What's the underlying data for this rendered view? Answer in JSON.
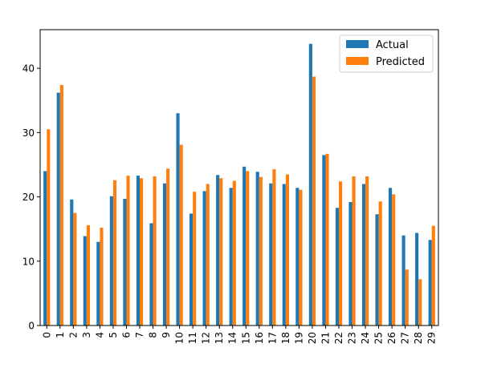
{
  "chart_data": {
    "type": "bar",
    "title": "",
    "xlabel": "",
    "ylabel": "",
    "categories": [
      "0",
      "1",
      "2",
      "3",
      "4",
      "5",
      "6",
      "7",
      "8",
      "9",
      "10",
      "11",
      "12",
      "13",
      "14",
      "15",
      "16",
      "17",
      "18",
      "19",
      "20",
      "21",
      "22",
      "23",
      "24",
      "25",
      "26",
      "27",
      "28",
      "29"
    ],
    "series": [
      {
        "name": "Actual",
        "color": "#1f77b4",
        "values": [
          24.0,
          36.2,
          19.6,
          13.9,
          13.0,
          20.1,
          19.7,
          23.3,
          15.9,
          22.1,
          33.0,
          17.4,
          20.9,
          23.4,
          21.4,
          24.7,
          23.9,
          22.1,
          22.0,
          21.4,
          43.8,
          26.5,
          18.3,
          19.2,
          22.0,
          17.3,
          21.4,
          14.0,
          14.4,
          13.3
        ]
      },
      {
        "name": "Predicted",
        "color": "#ff7f0e",
        "values": [
          30.5,
          37.4,
          17.5,
          15.6,
          15.2,
          22.6,
          23.3,
          22.9,
          23.2,
          24.4,
          28.1,
          20.8,
          22.0,
          22.9,
          22.5,
          24.0,
          23.1,
          24.3,
          23.5,
          21.1,
          38.7,
          26.7,
          22.4,
          23.2,
          23.2,
          19.3,
          20.4,
          8.7,
          7.2,
          15.5
        ]
      }
    ],
    "ylim": [
      0,
      46
    ],
    "yticks": [
      "0",
      "10",
      "20",
      "30",
      "40"
    ],
    "grid": false,
    "legend": {
      "placement": "top-right",
      "entries": [
        "Actual",
        "Predicted"
      ]
    }
  }
}
